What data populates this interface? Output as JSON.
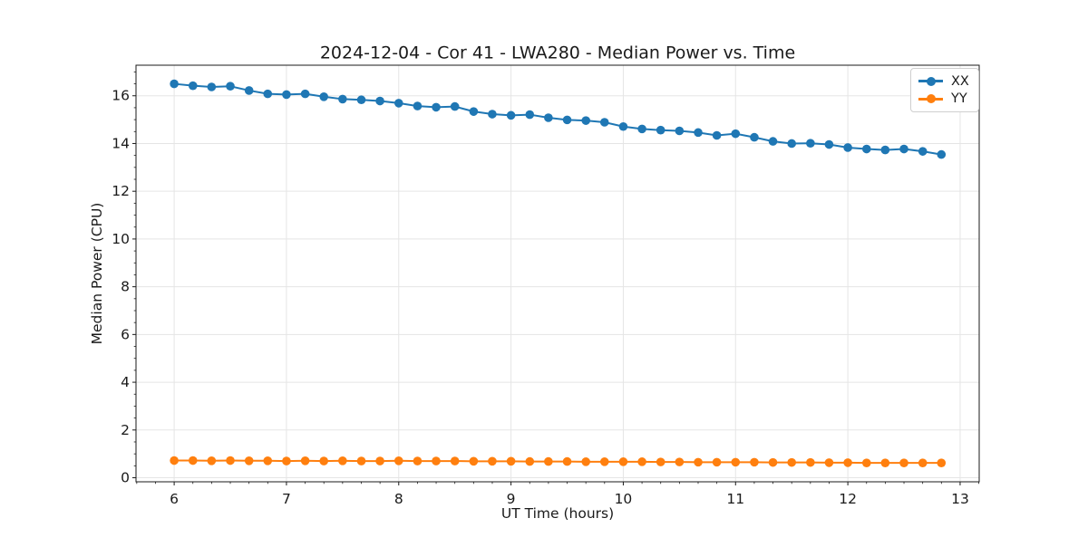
{
  "page": {
    "background": "#ffffff"
  },
  "colors": {
    "xx_series": "#1f77b4",
    "yy_series": "#ff7f0e",
    "grid": "#e5e5e5",
    "spine": "#1a1a1a",
    "text": "#1a1a1a",
    "legend_border": "#cfcfcf"
  },
  "chart_data": {
    "type": "line",
    "title": "2024-12-04 - Cor 41 - LWA280 - Median Power vs. Time",
    "xlabel": "UT Time (hours)",
    "ylabel": "Median Power (CPU)",
    "xlim": [
      5.66,
      13.17
    ],
    "ylim": [
      -0.17,
      17.28
    ],
    "x_ticks": [
      6,
      7,
      8,
      9,
      10,
      11,
      12,
      13
    ],
    "y_ticks": [
      0,
      2,
      4,
      6,
      8,
      10,
      12,
      14,
      16
    ],
    "x_minor_step": 0.1666667,
    "y_minor_step": 0.5,
    "grid": true,
    "legend_position": "upper right",
    "marker": "circle",
    "x": [
      6.0,
      6.167,
      6.333,
      6.5,
      6.667,
      6.833,
      7.0,
      7.167,
      7.333,
      7.5,
      7.667,
      7.833,
      8.0,
      8.167,
      8.333,
      8.5,
      8.667,
      8.833,
      9.0,
      9.167,
      9.333,
      9.5,
      9.667,
      9.833,
      10.0,
      10.167,
      10.333,
      10.5,
      10.667,
      10.833,
      11.0,
      11.167,
      11.333,
      11.5,
      11.667,
      11.833,
      12.0,
      12.167,
      12.333,
      12.5,
      12.667,
      12.833
    ],
    "series": [
      {
        "name": "XX",
        "color": "#1f77b4",
        "values": [
          16.5,
          16.42,
          16.37,
          16.4,
          16.22,
          16.08,
          16.05,
          16.08,
          15.96,
          15.86,
          15.83,
          15.78,
          15.69,
          15.57,
          15.52,
          15.55,
          15.34,
          15.23,
          15.18,
          15.21,
          15.08,
          14.99,
          14.96,
          14.89,
          14.71,
          14.61,
          14.56,
          14.53,
          14.46,
          14.34,
          14.41,
          14.26,
          14.09,
          14.0,
          14.01,
          13.96,
          13.83,
          13.77,
          13.73,
          13.77,
          13.67,
          13.54
        ]
      },
      {
        "name": "YY",
        "color": "#ff7f0e",
        "values": [
          0.72,
          0.72,
          0.71,
          0.72,
          0.71,
          0.71,
          0.7,
          0.71,
          0.7,
          0.71,
          0.7,
          0.7,
          0.71,
          0.7,
          0.7,
          0.7,
          0.69,
          0.69,
          0.69,
          0.68,
          0.68,
          0.68,
          0.67,
          0.67,
          0.67,
          0.67,
          0.66,
          0.66,
          0.65,
          0.65,
          0.65,
          0.65,
          0.64,
          0.64,
          0.64,
          0.63,
          0.63,
          0.62,
          0.62,
          0.62,
          0.62,
          0.62
        ]
      }
    ]
  }
}
